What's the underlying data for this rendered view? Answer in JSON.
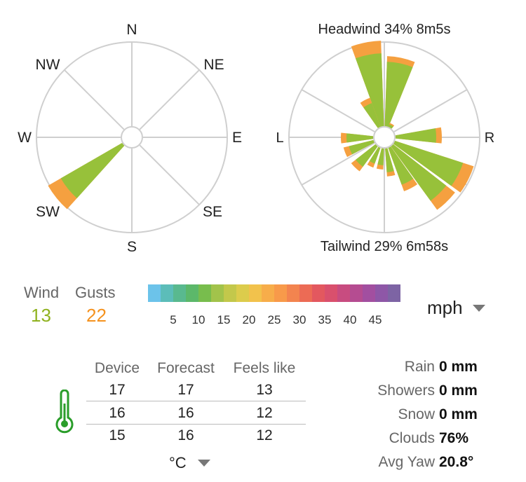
{
  "compass": {
    "labels": [
      "N",
      "NE",
      "E",
      "SE",
      "S",
      "SW",
      "W",
      "NW"
    ],
    "wind_from": "SW",
    "wind_color": "#97c13a",
    "gust_color": "#f5a040"
  },
  "relative": {
    "headwind": "Headwind 34% 8m5s",
    "tailwind": "Tailwind 29% 6m58s",
    "left": "L",
    "right": "R"
  },
  "wind": {
    "wind_label": "Wind",
    "wind_value": "13",
    "wind_color": "#8fb21f",
    "gusts_label": "Gusts",
    "gusts_value": "22",
    "gusts_color": "#f5921e"
  },
  "scale": {
    "ticks": [
      "5",
      "10",
      "15",
      "20",
      "25",
      "30",
      "35",
      "40",
      "45"
    ],
    "colors": [
      "#6cc3ea",
      "#5cbdb9",
      "#59b98f",
      "#5cb86a",
      "#78bd4d",
      "#a2c34b",
      "#c3c84b",
      "#dccc4c",
      "#f2c24c",
      "#f7ad4a",
      "#f89a4a",
      "#f3844f",
      "#ec6b55",
      "#e3585f",
      "#d9506d",
      "#c84c80",
      "#b54c91",
      "#a24fa0",
      "#8e57a7",
      "#7d64a4"
    ]
  },
  "units": {
    "speed": "mph",
    "temp": "°C"
  },
  "temperature": {
    "headers": [
      "Device",
      "Forecast",
      "Feels like"
    ],
    "rows": [
      [
        "17",
        "17",
        "13"
      ],
      [
        "16",
        "16",
        "12"
      ],
      [
        "15",
        "16",
        "12"
      ]
    ]
  },
  "weather": {
    "rain_label": "Rain",
    "rain_value": "0 mm",
    "showers_label": "Showers",
    "showers_value": "0 mm",
    "snow_label": "Snow",
    "snow_value": "0 mm",
    "clouds_label": "Clouds",
    "clouds_value": "76%",
    "yaw_label": "Avg Yaw",
    "yaw_value": "20.8°"
  }
}
